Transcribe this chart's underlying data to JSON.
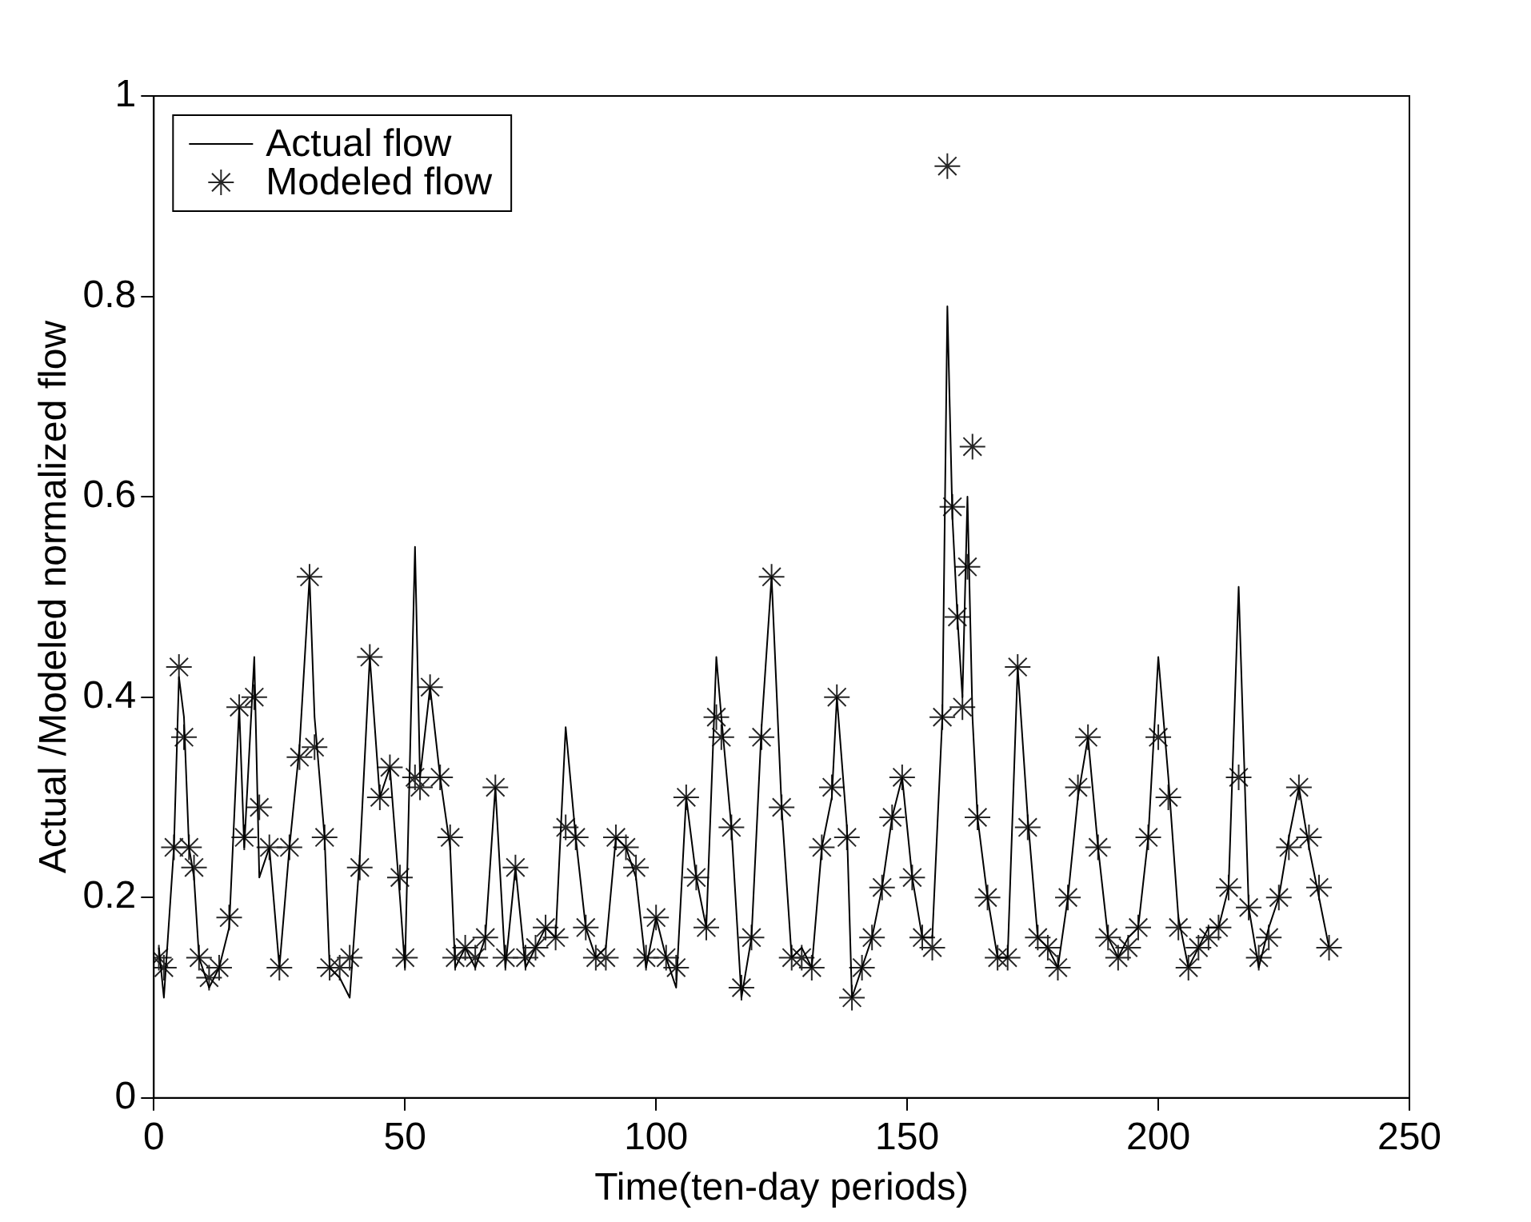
{
  "chart_data": {
    "type": "line",
    "xlabel": "Time(ten-day periods)",
    "ylabel": "Actual /Modeled normalized flow",
    "xlim": [
      0,
      250
    ],
    "xticks": [
      0,
      50,
      100,
      150,
      200,
      250
    ],
    "ylim": [
      0,
      1
    ],
    "yticks": [
      0,
      0.2,
      0.4,
      0.6,
      0.8,
      1
    ],
    "grid": false,
    "legend": "top left",
    "series": [
      {
        "name": "Actual flow",
        "type": "line",
        "color": "#000000",
        "marker": "none",
        "x": [
          1,
          2,
          4,
          5,
          6,
          7,
          8,
          9,
          11,
          13,
          15,
          17,
          18,
          20,
          21,
          23,
          25,
          27,
          29,
          31,
          32,
          34,
          35,
          37,
          39,
          41,
          43,
          45,
          47,
          49,
          50,
          52,
          53,
          55,
          57,
          59,
          60,
          62,
          64,
          66,
          68,
          70,
          72,
          74,
          76,
          78,
          80,
          82,
          84,
          86,
          88,
          90,
          92,
          94,
          96,
          98,
          100,
          102,
          104,
          106,
          108,
          110,
          112,
          113,
          115,
          117,
          119,
          121,
          123,
          125,
          127,
          129,
          131,
          133,
          135,
          136,
          138,
          139,
          141,
          143,
          145,
          147,
          149,
          151,
          153,
          155,
          157,
          158,
          159,
          160,
          161,
          162,
          163,
          164,
          166,
          168,
          170,
          172,
          174,
          176,
          178,
          180,
          182,
          184,
          186,
          188,
          190,
          192,
          194,
          196,
          198,
          200,
          202,
          204,
          206,
          208,
          210,
          212,
          214,
          216,
          218,
          220,
          222,
          224,
          226,
          228,
          230,
          232,
          234
        ],
        "values": [
          0.15,
          0.1,
          0.25,
          0.42,
          0.38,
          0.25,
          0.22,
          0.14,
          0.11,
          0.13,
          0.17,
          0.39,
          0.25,
          0.44,
          0.22,
          0.25,
          0.13,
          0.25,
          0.35,
          0.52,
          0.38,
          0.26,
          0.13,
          0.12,
          0.1,
          0.24,
          0.44,
          0.3,
          0.33,
          0.2,
          0.13,
          0.55,
          0.32,
          0.41,
          0.32,
          0.25,
          0.13,
          0.15,
          0.13,
          0.16,
          0.31,
          0.13,
          0.23,
          0.13,
          0.15,
          0.17,
          0.16,
          0.37,
          0.26,
          0.17,
          0.14,
          0.15,
          0.26,
          0.25,
          0.22,
          0.13,
          0.18,
          0.14,
          0.11,
          0.3,
          0.22,
          0.17,
          0.44,
          0.38,
          0.27,
          0.1,
          0.16,
          0.37,
          0.52,
          0.29,
          0.14,
          0.15,
          0.13,
          0.25,
          0.3,
          0.4,
          0.27,
          0.1,
          0.13,
          0.16,
          0.21,
          0.28,
          0.32,
          0.22,
          0.16,
          0.16,
          0.38,
          0.79,
          0.58,
          0.48,
          0.4,
          0.6,
          0.38,
          0.28,
          0.2,
          0.14,
          0.14,
          0.43,
          0.28,
          0.16,
          0.15,
          0.13,
          0.2,
          0.3,
          0.36,
          0.25,
          0.16,
          0.14,
          0.16,
          0.17,
          0.26,
          0.44,
          0.32,
          0.18,
          0.13,
          0.15,
          0.17,
          0.17,
          0.21,
          0.51,
          0.19,
          0.13,
          0.17,
          0.2,
          0.26,
          0.31,
          0.25,
          0.2,
          0.15
        ]
      },
      {
        "name": "Modeled flow",
        "type": "scatter",
        "color": "#262626",
        "marker": "cross",
        "x": [
          1,
          2,
          4,
          5,
          6,
          7,
          8,
          9,
          11,
          13,
          15,
          17,
          18,
          20,
          21,
          23,
          25,
          27,
          29,
          31,
          32,
          34,
          35,
          37,
          39,
          41,
          43,
          45,
          47,
          49,
          50,
          52,
          53,
          55,
          57,
          59,
          60,
          62,
          64,
          66,
          68,
          70,
          72,
          74,
          76,
          78,
          80,
          82,
          84,
          86,
          88,
          90,
          92,
          94,
          96,
          98,
          100,
          102,
          104,
          106,
          108,
          110,
          112,
          113,
          115,
          117,
          119,
          121,
          123,
          125,
          127,
          129,
          131,
          133,
          135,
          136,
          138,
          139,
          141,
          143,
          145,
          147,
          149,
          151,
          153,
          155,
          157,
          158,
          159,
          160,
          161,
          162,
          163,
          164,
          166,
          168,
          170,
          172,
          174,
          176,
          178,
          180,
          182,
          184,
          186,
          188,
          190,
          192,
          194,
          196,
          198,
          200,
          202,
          204,
          206,
          208,
          210,
          212,
          214,
          216,
          218,
          220,
          222,
          224,
          226,
          228,
          230,
          232,
          234
        ],
        "values": [
          0.14,
          0.13,
          0.25,
          0.43,
          0.36,
          0.25,
          0.23,
          0.14,
          0.12,
          0.13,
          0.18,
          0.39,
          0.26,
          0.4,
          0.29,
          0.25,
          0.13,
          0.25,
          0.34,
          0.52,
          0.35,
          0.26,
          0.13,
          0.13,
          0.14,
          0.23,
          0.44,
          0.3,
          0.33,
          0.22,
          0.14,
          0.32,
          0.31,
          0.41,
          0.32,
          0.26,
          0.14,
          0.15,
          0.14,
          0.16,
          0.31,
          0.14,
          0.23,
          0.14,
          0.15,
          0.17,
          0.16,
          0.27,
          0.26,
          0.17,
          0.14,
          0.14,
          0.26,
          0.25,
          0.23,
          0.14,
          0.18,
          0.14,
          0.13,
          0.3,
          0.22,
          0.17,
          0.38,
          0.36,
          0.27,
          0.11,
          0.16,
          0.36,
          0.52,
          0.29,
          0.14,
          0.14,
          0.13,
          0.25,
          0.31,
          0.4,
          0.26,
          0.1,
          0.13,
          0.16,
          0.21,
          0.28,
          0.32,
          0.22,
          0.16,
          0.15,
          0.38,
          0.93,
          0.59,
          0.48,
          0.39,
          0.53,
          0.65,
          0.28,
          0.2,
          0.14,
          0.14,
          0.43,
          0.27,
          0.16,
          0.15,
          0.13,
          0.2,
          0.31,
          0.36,
          0.25,
          0.16,
          0.14,
          0.15,
          0.17,
          0.26,
          0.36,
          0.3,
          0.17,
          0.13,
          0.15,
          0.16,
          0.17,
          0.21,
          0.32,
          0.19,
          0.14,
          0.16,
          0.2,
          0.25,
          0.31,
          0.26,
          0.21,
          0.15
        ]
      }
    ]
  }
}
